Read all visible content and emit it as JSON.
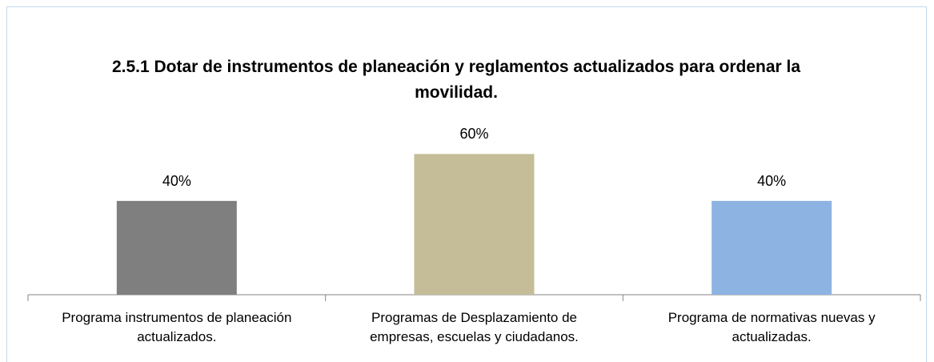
{
  "chart_data": {
    "type": "bar",
    "title": "2.5.1 Dotar de instrumentos de planeación y reglamentos actualizados para ordenar la movilidad.",
    "categories": [
      "Programa instrumentos de planeación actualizados.",
      "Programas de Desplazamiento de empresas, escuelas y ciudadanos.",
      "Programa de normativas nuevas y actualizadas."
    ],
    "values": [
      40,
      60,
      40
    ],
    "value_labels": [
      "40%",
      "60%",
      "40%"
    ],
    "colors": [
      "#7f7f7f",
      "#c4bd97",
      "#8db3e2"
    ],
    "ylim": [
      0,
      70
    ]
  }
}
